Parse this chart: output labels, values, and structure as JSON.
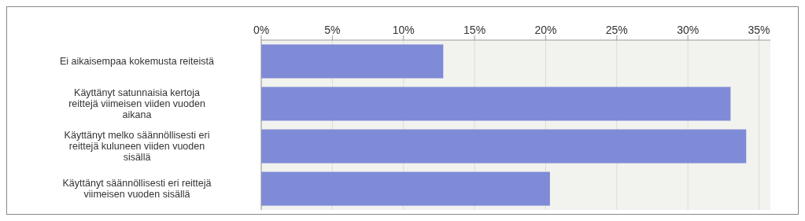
{
  "chart_data": {
    "type": "bar",
    "orientation": "horizontal",
    "categories": [
      "Ei aikaisempaa kokemusta reiteistä",
      "Käyttänyt satunnaisia kertoja reittejä viimeisen viiden vuoden aikana",
      "Käyttänyt melko säännöllisesti eri reittejä kuluneen viiden vuoden sisällä",
      "Käyttänyt säännöllisesti eri reittejä viimeisen vuoden sisällä"
    ],
    "values": [
      12.8,
      33.0,
      34.1,
      20.3
    ],
    "color": "#7f8bd6",
    "xlim": [
      0,
      35.8
    ],
    "xticks": [
      {
        "value": 0,
        "label": "0%"
      },
      {
        "value": 5,
        "label": "5%"
      },
      {
        "value": 10,
        "label": "10%"
      },
      {
        "value": 15,
        "label": "15%"
      },
      {
        "value": 20,
        "label": "20%"
      },
      {
        "value": 25,
        "label": "25%"
      },
      {
        "value": 30,
        "label": "30%"
      },
      {
        "value": 35,
        "label": "35%"
      }
    ],
    "grid": "x"
  }
}
